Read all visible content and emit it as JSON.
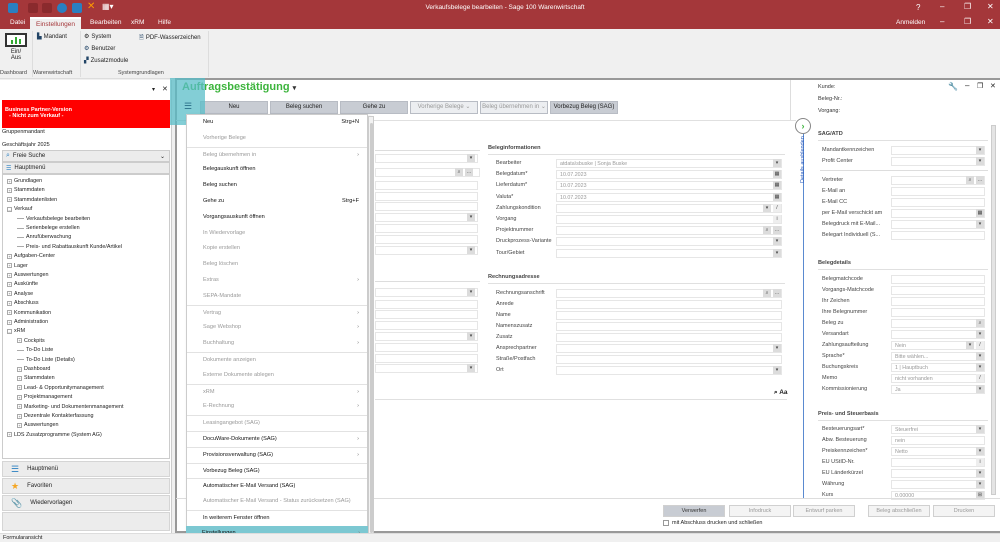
{
  "window": {
    "title": "Verkaufsbelege bearbeiten - Sage 100 Warenwirtschaft",
    "help": "?",
    "login": "Anmelden"
  },
  "ribbon": {
    "tabs": [
      {
        "label": "Datei"
      },
      {
        "label": "Einstellungen",
        "active": true
      },
      {
        "label": "Bearbeiten"
      },
      {
        "label": "xRM"
      },
      {
        "label": "Hilfe"
      }
    ],
    "dashboard_btn": "Ein/\nAus",
    "mandant": "Mandant",
    "system": "System",
    "benutzer": "Benutzer",
    "zusatzmodule": "Zusatzmodule",
    "pdf": "PDF-Wasserzeichen",
    "groups": [
      "Dashboard",
      "Warenwirtschaft",
      "Systemgrundlagen"
    ]
  },
  "left": {
    "bp_line1": "Business Partner-Version",
    "bp_line2": "- Nicht zum Verkauf -",
    "gruppenmandant": "Gruppenmandant",
    "geschaeftsjahr": "Geschäftsjahr 2025",
    "search": "Freie Suche",
    "hauptmenu": "Hauptmenü",
    "tree": [
      {
        "label": "Grundlagen",
        "level": 0,
        "state": "collapsed"
      },
      {
        "label": "Stammdaten",
        "level": 0,
        "state": "collapsed"
      },
      {
        "label": "Stammdatenlisten",
        "level": 0,
        "state": "collapsed"
      },
      {
        "label": "Verkauf",
        "level": 0,
        "state": "expanded"
      },
      {
        "label": "Verkaufsbelege bearbeiten",
        "level": 1,
        "state": "leaf"
      },
      {
        "label": "Serienbelege erstellen",
        "level": 1,
        "state": "leaf"
      },
      {
        "label": "Anrufüberwachung",
        "level": 1,
        "state": "leaf"
      },
      {
        "label": "Preis- und Rabattauskunft Kunde/Artikel",
        "level": 1,
        "state": "leaf"
      },
      {
        "label": "Aufgaben-Center",
        "level": 0,
        "state": "collapsed"
      },
      {
        "label": "Lager",
        "level": 0,
        "state": "collapsed"
      },
      {
        "label": "Auswertungen",
        "level": 0,
        "state": "collapsed"
      },
      {
        "label": "Auskünfte",
        "level": 0,
        "state": "collapsed"
      },
      {
        "label": "Analyse",
        "level": 0,
        "state": "collapsed"
      },
      {
        "label": "Abschluss",
        "level": 0,
        "state": "collapsed"
      },
      {
        "label": "Kommunikation",
        "level": 0,
        "state": "collapsed"
      },
      {
        "label": "Administration",
        "level": 0,
        "state": "collapsed"
      },
      {
        "label": "xRM",
        "level": 0,
        "state": "expanded"
      },
      {
        "label": "Cockpits",
        "level": 1,
        "state": "collapsed"
      },
      {
        "label": "To-Do Liste",
        "level": 1,
        "state": "leaf"
      },
      {
        "label": "To-Do Liste (Details)",
        "level": 1,
        "state": "leaf"
      },
      {
        "label": "Dashboard",
        "level": 1,
        "state": "collapsed"
      },
      {
        "label": "Stammdaten",
        "level": 1,
        "state": "collapsed"
      },
      {
        "label": "Lead- & Opportunitymanagement",
        "level": 1,
        "state": "collapsed"
      },
      {
        "label": "Projektmanagement",
        "level": 1,
        "state": "collapsed"
      },
      {
        "label": "Marketing- und Dokumentenmanagement",
        "level": 1,
        "state": "collapsed"
      },
      {
        "label": "Dezentrale Kontakterfassung",
        "level": 1,
        "state": "collapsed"
      },
      {
        "label": "Auswertungen",
        "level": 1,
        "state": "collapsed"
      },
      {
        "label": "LDS Zusatzprogramme (System AG)",
        "level": 0,
        "state": "collapsed"
      }
    ],
    "nav": [
      {
        "label": "Hauptmenü",
        "icon": "tree-icon"
      },
      {
        "label": "Favoriten",
        "icon": "star-icon"
      },
      {
        "label": "Wiedervorlagen",
        "icon": "paperclip-icon"
      }
    ]
  },
  "status": "Formularansicht",
  "doc": {
    "title": "Auftragsbestätigung",
    "header": {
      "kunde": "Kunde:",
      "beleg_nr": "Beleg-Nr.:",
      "vorgang": "Vorgang:"
    },
    "toolbar": [
      {
        "label": "Neu",
        "enabled": true
      },
      {
        "label": "Beleg suchen",
        "enabled": true
      },
      {
        "label": "Gehe zu",
        "enabled": true
      },
      {
        "label": "Vorherige Belege ⌄",
        "enabled": false
      },
      {
        "label": "Beleg übernehmen in ⌄",
        "enabled": false
      },
      {
        "label": "Vorbezug Beleg (SAG)",
        "enabled": true
      }
    ],
    "menu": [
      {
        "label": "Neu",
        "shortcut": "Strg+N",
        "enabled": true
      },
      {
        "label": "Vorherige Belege",
        "enabled": false
      },
      {
        "label": "Beleg übernehmen in",
        "enabled": false,
        "submenu": true,
        "sep": true
      },
      {
        "label": "Belegauskunft öffnen",
        "enabled": true
      },
      {
        "label": "Beleg suchen",
        "enabled": true
      },
      {
        "label": "Gehe zu",
        "shortcut": "Strg+F",
        "enabled": true
      },
      {
        "label": "Vorgangsauskunft öffnen",
        "enabled": true
      },
      {
        "label": "In Wiedervorlage",
        "enabled": false
      },
      {
        "label": "Kopie erstellen",
        "enabled": false
      },
      {
        "label": "Beleg löschen",
        "enabled": false
      },
      {
        "label": "Extras",
        "enabled": false,
        "submenu": true
      },
      {
        "label": "SEPA-Mandate",
        "enabled": false
      },
      {
        "label": "Vertrag",
        "enabled": false,
        "submenu": true,
        "sep": true
      },
      {
        "label": "Sage Webshop",
        "enabled": false,
        "submenu": true
      },
      {
        "label": "Buchhaltung",
        "enabled": false,
        "submenu": true
      },
      {
        "label": "Dokumente anzeigen",
        "enabled": false,
        "sep": true
      },
      {
        "label": "Externe Dokumente ablegen",
        "enabled": false
      },
      {
        "label": "xRM",
        "enabled": false,
        "submenu": true,
        "sep": true
      },
      {
        "label": "E-Rechnung",
        "enabled": false,
        "submenu": true
      },
      {
        "label": "Leasingangebot (SAG)",
        "enabled": false,
        "sep": true
      },
      {
        "label": "DocuWare-Dokumente (SAG)",
        "enabled": true,
        "submenu": true,
        "sep": true
      },
      {
        "label": "Provisionsverwaltung (SAG)",
        "enabled": true,
        "submenu": true,
        "sep": true
      },
      {
        "label": "Vorbezug Beleg (SAG)",
        "enabled": true,
        "sep": true
      },
      {
        "label": "Automatischer E-Mail Versand (SAG)",
        "enabled": true,
        "sep": true
      },
      {
        "label": "Automatischer E-Mail Versand - Status zurücksetzen (SAG)",
        "enabled": false
      },
      {
        "label": "In weiterem Fenster öffnen",
        "enabled": true,
        "sep": true
      },
      {
        "label": "Einstellungen",
        "enabled": true,
        "submenu": true,
        "highlighted": true
      }
    ],
    "beleginfo": {
      "title": "Beleginformationen",
      "fields": [
        {
          "label": "Bearbeiter",
          "value": "atdata\\sbuske  |  Sonja Buske",
          "buttons": [
            "dropdown"
          ]
        },
        {
          "label": "Belegdatum*",
          "value": "10.07.2023",
          "buttons": [
            "calendar"
          ]
        },
        {
          "label": "Lieferdatum*",
          "value": "10.07.2023",
          "buttons": [
            "calendar"
          ]
        },
        {
          "label": "Valuta*",
          "value": "10.07.2023",
          "buttons": [
            "calendar"
          ]
        },
        {
          "label": "Zahlungskondition",
          "value": "",
          "buttons": [
            "dropdown",
            "edit"
          ]
        },
        {
          "label": "Vorgang",
          "value": "",
          "buttons": [
            "info"
          ]
        },
        {
          "label": "Projektnummer",
          "value": "",
          "buttons": [
            "search",
            "more"
          ]
        },
        {
          "label": "Druckprozess-Variante",
          "value": "",
          "buttons": [
            "dropdown"
          ]
        },
        {
          "label": "Tour/Gebiet",
          "value": "",
          "buttons": [
            "dropdown"
          ]
        }
      ]
    },
    "rechnung": {
      "title": "Rechnungsadresse",
      "fields": [
        {
          "label": "Rechnungsanschrift",
          "value": "",
          "buttons": [
            "search",
            "more"
          ]
        },
        {
          "label": "Anrede",
          "value": "",
          "buttons": []
        },
        {
          "label": "Name",
          "value": "",
          "buttons": []
        },
        {
          "label": "Namenszusatz",
          "value": "",
          "buttons": []
        },
        {
          "label": "Zusatz",
          "value": "",
          "buttons": []
        },
        {
          "label": "Ansprechpartner",
          "value": "",
          "buttons": [
            "dropdown"
          ]
        },
        {
          "label": "Straße/Postfach",
          "value": "",
          "buttons": []
        },
        {
          "label": "Ort",
          "value": "",
          "buttons": [
            "dropdown"
          ]
        }
      ]
    },
    "text_search": "Aa",
    "details_toggle": "Details ausblenden",
    "sag": {
      "title": "SAG/ATD",
      "fields": [
        {
          "label": "Mandantkennzeichen",
          "value": "",
          "buttons": [
            "dropdown"
          ]
        },
        {
          "label": "Profit Center",
          "value": "",
          "buttons": [
            "dropdown"
          ]
        },
        {
          "label": "Vertreter",
          "value": "",
          "buttons": [
            "search",
            "more"
          ]
        },
        {
          "label": "E-Mail an",
          "value": "",
          "buttons": []
        },
        {
          "label": "E-Mail CC",
          "value": "",
          "buttons": []
        },
        {
          "label": "per E-Mail verschickt am",
          "value": "",
          "buttons": [
            "calendar"
          ]
        },
        {
          "label": "Belegdruck mit E-Mail...",
          "value": "",
          "buttons": [
            "dropdown"
          ]
        },
        {
          "label": "Belegart Individuell (S...",
          "value": "",
          "buttons": []
        }
      ]
    },
    "belegdetails": {
      "title": "Belegdetails",
      "fields": [
        {
          "label": "Belegmatchcode",
          "value": "",
          "buttons": []
        },
        {
          "label": "Vorgangs-Matchcode",
          "value": "",
          "buttons": []
        },
        {
          "label": "Ihr Zeichen",
          "value": "",
          "buttons": []
        },
        {
          "label": "Ihre Belegnummer",
          "value": "",
          "buttons": []
        },
        {
          "label": "Beleg zu",
          "value": "",
          "buttons": [
            "search"
          ]
        },
        {
          "label": "Versandart",
          "value": "",
          "buttons": [
            "dropdown"
          ]
        },
        {
          "label": "Zahlungsaufteilung",
          "value": "Nein",
          "buttons": [
            "dropdown",
            "edit"
          ]
        },
        {
          "label": "Sprache*",
          "value": "Bitte wählen...",
          "buttons": [
            "dropdown"
          ]
        },
        {
          "label": "Buchungskreis",
          "value": "1  |  Hauptbuch",
          "buttons": [
            "dropdown"
          ]
        },
        {
          "label": "Memo",
          "value": "nicht vorhanden",
          "buttons": [
            "edit"
          ]
        },
        {
          "label": "Kommissionierung",
          "value": "Ja",
          "buttons": [
            "dropdown"
          ]
        }
      ]
    },
    "preis": {
      "title": "Preis- und Steuerbasis",
      "fields": [
        {
          "label": "Besteuerungsart*",
          "value": "Steuerfrei",
          "buttons": [
            "dropdown"
          ]
        },
        {
          "label": "Abw. Besteuerung",
          "value": "nein",
          "buttons": []
        },
        {
          "label": "Preiskennzeichen*",
          "value": "Netto",
          "buttons": [
            "dropdown"
          ]
        },
        {
          "label": "EU UStID-Nr.",
          "value": "",
          "buttons": [
            "info"
          ]
        },
        {
          "label": "EU Länderkürzel",
          "value": "",
          "buttons": [
            "dropdown"
          ]
        },
        {
          "label": "Währung",
          "value": "",
          "buttons": [
            "dropdown"
          ]
        },
        {
          "label": "Kurs",
          "value": "0.00000",
          "buttons": [
            "calc"
          ]
        }
      ]
    },
    "footer": {
      "buttons": [
        {
          "label": "Verwerfen",
          "enabled": true
        },
        {
          "label": "Infodruck",
          "enabled": false
        },
        {
          "label": "Entwurf parken",
          "enabled": false
        },
        {
          "label": "Beleg abschließen",
          "enabled": false
        },
        {
          "label": "Drucken",
          "enabled": false
        }
      ],
      "checkbox": {
        "label": "mit Abschluss drucken und schließen",
        "checked": false
      }
    }
  },
  "colors": {
    "brand": "#a4373a",
    "accent_green": "#3cb43c",
    "highlight": "#7cc8d2",
    "warning_red": "#ff0000"
  }
}
